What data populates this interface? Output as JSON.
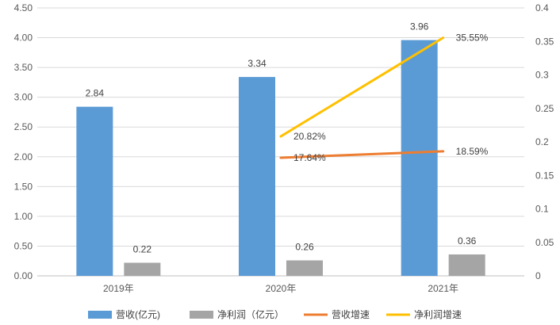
{
  "chart_data": {
    "type": "bar",
    "categories": [
      "2019年",
      "2020年",
      "2021年"
    ],
    "y_left": {
      "ylim": [
        0,
        4.5
      ],
      "ticks": [
        "0.00",
        "0.50",
        "1.00",
        "1.50",
        "2.00",
        "2.50",
        "3.00",
        "3.50",
        "4.00",
        "4.50"
      ]
    },
    "y_right": {
      "ylim": [
        0,
        0.4
      ],
      "ticks": [
        "0",
        "0.05",
        "0.1",
        "0.15",
        "0.2",
        "0.25",
        "0.3",
        "0.35",
        "0.4"
      ]
    },
    "series": [
      {
        "name": "营收(亿元)",
        "kind": "bar",
        "axis": "left",
        "color": "#5B9BD5",
        "values": [
          2.84,
          3.34,
          3.96
        ],
        "labels": [
          "2.84",
          "3.34",
          "3.96"
        ]
      },
      {
        "name": "净利润（亿元）",
        "kind": "bar",
        "axis": "left",
        "color": "#A5A5A5",
        "values": [
          0.22,
          0.26,
          0.36
        ],
        "labels": [
          "0.22",
          "0.26",
          "0.36"
        ]
      },
      {
        "name": "营收增速",
        "kind": "line",
        "axis": "right",
        "color": "#ED7D31",
        "values": [
          null,
          0.1764,
          0.1859
        ],
        "labels": [
          "",
          "17.64%",
          "18.59%"
        ]
      },
      {
        "name": "净利润增速",
        "kind": "line",
        "axis": "right",
        "color": "#FFC000",
        "values": [
          null,
          0.2082,
          0.3555
        ],
        "labels": [
          "",
          "20.82%",
          "35.55%"
        ]
      }
    ],
    "grid": true,
    "legend_position": "bottom"
  }
}
